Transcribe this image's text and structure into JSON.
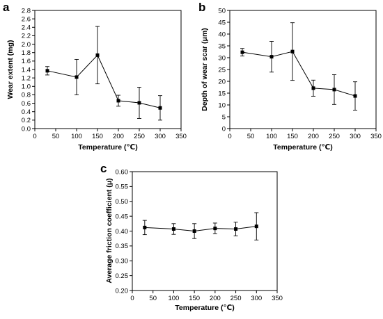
{
  "figure": {
    "panel_labels": [
      "a",
      "b",
      "c"
    ]
  },
  "chart_data": [
    {
      "panel": "a",
      "type": "line",
      "title": "",
      "xlabel": "Temperature (℃)",
      "ylabel": "Wear extent (mg)",
      "xlim": [
        0,
        350
      ],
      "ylim": [
        0,
        2.8
      ],
      "xticks": [
        "0",
        "50",
        "100",
        "150",
        "200",
        "250",
        "300",
        "350"
      ],
      "yticks": [
        "0.0",
        "0.2",
        "0.4",
        "0.6",
        "0.8",
        "1.0",
        "1.2",
        "1.4",
        "1.6",
        "1.8",
        "2.0",
        "2.2",
        "2.4",
        "2.6",
        "2.8"
      ],
      "grid": false,
      "x": [
        30,
        100,
        150,
        200,
        250,
        300
      ],
      "y": [
        1.37,
        1.22,
        1.74,
        0.66,
        0.61,
        0.49
      ],
      "err": [
        0.1,
        0.42,
        0.68,
        0.13,
        0.37,
        0.29
      ]
    },
    {
      "panel": "b",
      "type": "line",
      "title": "",
      "xlabel": "Temperature (℃)",
      "ylabel": "Depth of wear scar (μm)",
      "xlim": [
        0,
        350
      ],
      "ylim": [
        0,
        50
      ],
      "xticks": [
        "0",
        "50",
        "100",
        "150",
        "200",
        "250",
        "300",
        "350"
      ],
      "yticks": [
        "0",
        "5",
        "10",
        "15",
        "20",
        "25",
        "30",
        "35",
        "40",
        "45",
        "50"
      ],
      "grid": false,
      "x": [
        30,
        100,
        150,
        200,
        250,
        300
      ],
      "y": [
        32.3,
        30.4,
        32.6,
        17.1,
        16.5,
        13.8
      ],
      "err": [
        1.6,
        6.5,
        12.2,
        3.4,
        6.3,
        6.0
      ]
    },
    {
      "panel": "c",
      "type": "line",
      "title": "",
      "xlabel": "Temperature (℃)",
      "ylabel": "Average friction coefficient (μ)",
      "xlim": [
        0,
        350
      ],
      "ylim": [
        0.2,
        0.6
      ],
      "xticks": [
        "0",
        "50",
        "100",
        "150",
        "200",
        "250",
        "300",
        "350"
      ],
      "yticks": [
        "0.20",
        "0.25",
        "0.30",
        "0.35",
        "0.40",
        "0.45",
        "0.50",
        "0.55",
        "0.60"
      ],
      "grid": false,
      "x": [
        30,
        100,
        150,
        200,
        250,
        300
      ],
      "y": [
        0.412,
        0.407,
        0.4,
        0.409,
        0.407,
        0.416
      ],
      "err": [
        0.024,
        0.018,
        0.025,
        0.018,
        0.023,
        0.046
      ]
    }
  ]
}
